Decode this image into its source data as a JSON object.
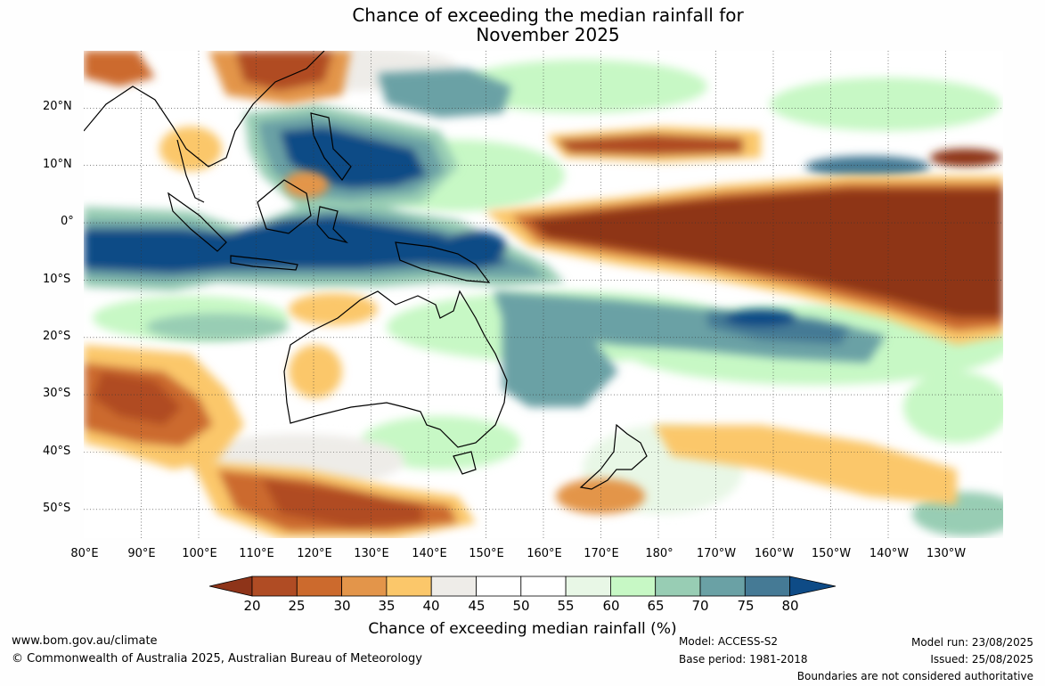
{
  "title": {
    "line1": "Chance of exceeding the median rainfall for",
    "line2": "November 2025"
  },
  "axes": {
    "lat_labels": [
      "20°N",
      "10°N",
      "0°",
      "10°S",
      "20°S",
      "30°S",
      "40°S",
      "50°S"
    ],
    "lon_labels": [
      "80°E",
      "90°E",
      "100°E",
      "110°E",
      "120°E",
      "130°E",
      "140°E",
      "150°E",
      "160°E",
      "170°E",
      "180°",
      "170°W",
      "160°W",
      "150°W",
      "140°W",
      "130°W"
    ],
    "lat_range": [
      -55,
      30
    ],
    "lon_range": [
      80,
      240
    ]
  },
  "colorbar": {
    "label": "Chance of exceeding median rainfall (%)",
    "ticks": [
      "20",
      "25",
      "30",
      "35",
      "40",
      "45",
      "50",
      "55",
      "60",
      "65",
      "70",
      "75",
      "80"
    ],
    "colors": [
      "#8e3419",
      "#b04c24",
      "#cc6a2d",
      "#e3954a",
      "#fbc76a",
      "#eeece8",
      "#ffffff",
      "#ffffff",
      "#e8f7e6",
      "#c7f8c5",
      "#98cdb4",
      "#6aa1a5",
      "#457a95",
      "#0e4b86"
    ]
  },
  "footer": {
    "website": "www.bom.gov.au/climate",
    "copyright": "© Commonwealth of Australia 2025, Australian Bureau of Meteorology",
    "model": "Model: ACCESS-S2",
    "base_period": "Base period: 1981-2018",
    "model_run": "Model run: 23/08/2025",
    "issued": "Issued: 25/08/2025",
    "disclaimer": "Boundaries are not considered authoritative"
  }
}
